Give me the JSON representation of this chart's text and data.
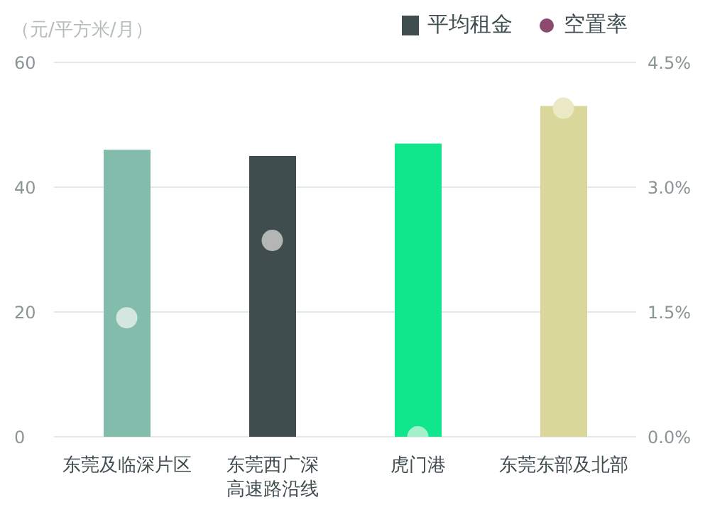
{
  "chart_data": {
    "type": "bar",
    "ylabel": "（元/平方米/月）",
    "categories": [
      "东莞及临深片区",
      "东莞西广深高速路沿线",
      "虎门港",
      "东莞东部及北部"
    ],
    "series": [
      {
        "name": "平均租金",
        "color": "#3f4d4f",
        "colors": [
          "#84bcac",
          "#3f4d4f",
          "#10e68c",
          "#dad79a"
        ],
        "values": [
          46,
          45,
          47,
          53
        ]
      },
      {
        "name": "空置率",
        "type": "scatter",
        "axis": "y2",
        "color": "#8e4a6e",
        "colors": [
          "#d3e6df",
          "#b4b6b6",
          "#a4f2cc",
          "#ebe9c6"
        ],
        "values": [
          1.43,
          2.36,
          0,
          3.95
        ]
      }
    ],
    "ylim": [
      0,
      60
    ],
    "yticks": [
      0,
      20,
      40,
      60
    ],
    "y2lim": [
      0,
      4.5
    ],
    "y2ticks": [
      {
        "value": 0,
        "label": "0.0%"
      },
      {
        "value": 1.5,
        "label": "1.5%"
      },
      {
        "value": 3,
        "label": "3.0%"
      },
      {
        "value": 4.5,
        "label": "4.5%"
      }
    ],
    "grid": "y",
    "legend": "top right",
    "marker": "circle"
  }
}
